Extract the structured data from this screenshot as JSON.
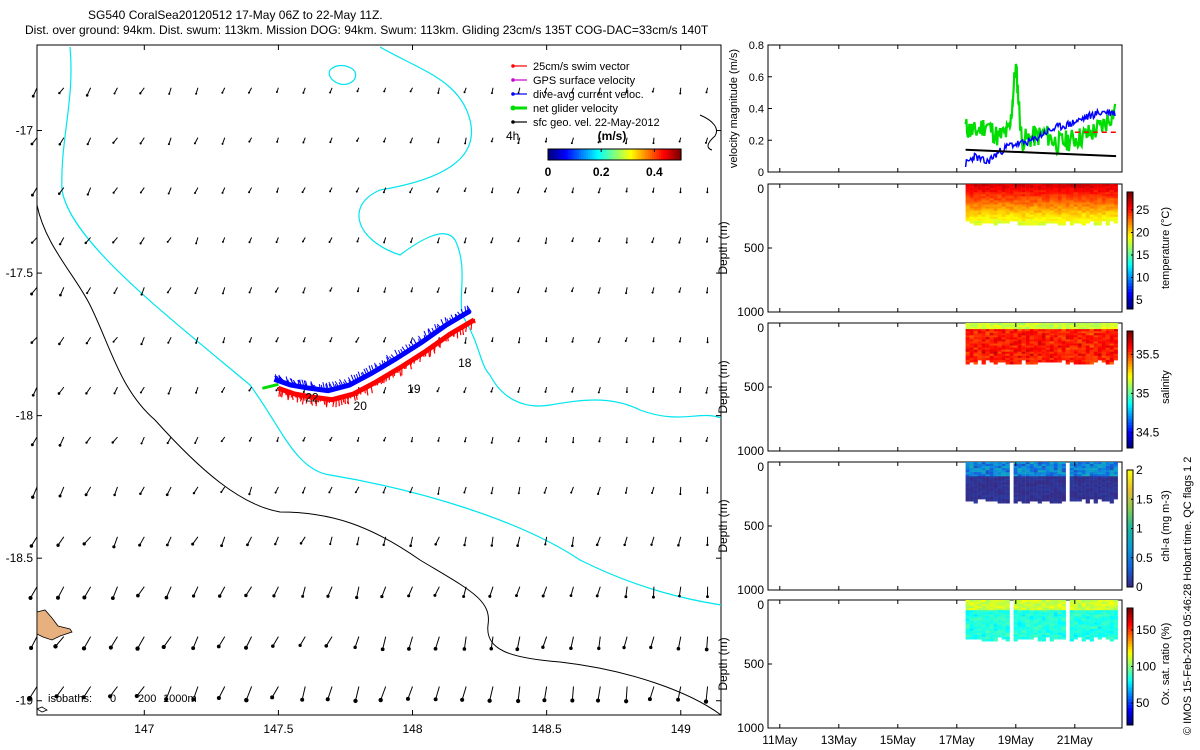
{
  "title_line1": "SG540 CoralSea20120512 17-May 06Z to 22-May 11Z.",
  "title_line2": "Dist. over ground: 94km. Dist. swum: 113km. Mission DOG: 94km. Swum: 113km. Gliding 23cm/s 135T COG-DAC=33cm/s 140T",
  "side_note": "© IMOS 15-Feb-2019 05:46:28 Hobart time. QC flags 1 2",
  "colors": {
    "swim": "#ff0000",
    "gps": "#cc00cc",
    "dac": "#0000ff",
    "net": "#00dd00",
    "geo": "#000000",
    "isobath200": "#00e5ee",
    "isobath1000": "#000000",
    "land": "#e8b07e"
  },
  "chart_data": [
    {
      "type": "scatter",
      "name": "map",
      "xlim": [
        146.6,
        149.15
      ],
      "ylim": [
        -19.05,
        -16.7
      ],
      "xticks": [
        147,
        147.5,
        148,
        148.5,
        149
      ],
      "yticks": [
        -17,
        -17.5,
        -18,
        -18.5,
        -19
      ],
      "xtick_labels": [
        "147",
        "147.5",
        "148",
        "148.5",
        "149"
      ],
      "ytick_labels": [
        "-17",
        "-17.5",
        "-18",
        "-18.5",
        "-19"
      ],
      "legend": [
        "25cm/s swim vector",
        "GPS surface velocity",
        "dive-avg current veloc.",
        "net glider velocity",
        "sfc geo. vel. 22-May-2012"
      ],
      "legend_position": "top-right",
      "colorbar": {
        "title": "(m/s)",
        "ticks": [
          "0",
          "0.2",
          "0.4"
        ],
        "range": [
          0,
          0.5
        ]
      },
      "track_day_labels": [
        {
          "text": "18",
          "lon": 148.17,
          "lat": -17.83
        },
        {
          "text": "19",
          "lon": 147.98,
          "lat": -17.92
        },
        {
          "text": "20",
          "lon": 147.78,
          "lat": -17.98
        },
        {
          "text": "22",
          "lon": 147.6,
          "lat": -17.95
        }
      ],
      "track": [
        [
          148.23,
          -17.65
        ],
        [
          148.14,
          -17.7
        ],
        [
          148.05,
          -17.76
        ],
        [
          147.95,
          -17.82
        ],
        [
          147.86,
          -17.87
        ],
        [
          147.78,
          -17.91
        ],
        [
          147.7,
          -17.93
        ],
        [
          147.62,
          -17.92
        ],
        [
          147.56,
          -17.91
        ],
        [
          147.5,
          -17.89
        ]
      ],
      "isobath_labels": {
        "prefix": "isobaths:",
        "values": [
          "0",
          "200",
          "1000m"
        ]
      },
      "marker_label": "4h",
      "grid": false
    },
    {
      "type": "line",
      "name": "velocity",
      "ylabel": "velocity magnitude (m/s)",
      "ylim": [
        0,
        0.8
      ],
      "yticks": [
        "0",
        "0.2",
        "0.4",
        "0.6",
        "0.8"
      ],
      "series": [
        {
          "color": "#00dd00",
          "x": [
            17.3,
            17.6,
            18.0,
            18.4,
            18.8,
            19.0,
            19.2,
            19.6,
            20.0,
            20.4,
            20.8,
            21.2,
            21.6,
            22.0,
            22.4
          ],
          "values": [
            0.28,
            0.25,
            0.3,
            0.22,
            0.26,
            0.68,
            0.2,
            0.22,
            0.24,
            0.18,
            0.2,
            0.22,
            0.25,
            0.3,
            0.4
          ]
        },
        {
          "color": "#0000ff",
          "x": [
            17.3,
            17.6,
            18.0,
            18.4,
            18.8,
            19.2,
            19.6,
            20.0,
            20.4,
            20.8,
            21.2,
            21.6,
            22.0,
            22.4
          ],
          "values": [
            0.05,
            0.1,
            0.06,
            0.12,
            0.17,
            0.18,
            0.2,
            0.25,
            0.28,
            0.3,
            0.33,
            0.36,
            0.38,
            0.37
          ]
        },
        {
          "color": "#000000",
          "x": [
            17.3,
            22.4
          ],
          "values": [
            0.14,
            0.1
          ]
        },
        {
          "color": "#ff0000",
          "x": [
            21.0,
            22.4
          ],
          "values": [
            0.25,
            0.25
          ]
        }
      ]
    },
    {
      "type": "heatmap",
      "name": "temperature",
      "ylabel": "Depth (m)",
      "cbar_label": "temperature (°C)",
      "cbar_ticks": [
        "5",
        "10",
        "15",
        "20",
        "25"
      ],
      "ylim": [
        0,
        1000
      ],
      "yticks": [
        "0",
        "500",
        "1000"
      ],
      "clim": [
        3,
        29
      ]
    },
    {
      "type": "heatmap",
      "name": "salinity",
      "ylabel": "Depth (m)",
      "cbar_label": "salinity",
      "cbar_ticks": [
        "34.5",
        "35",
        "35.5"
      ],
      "ylim": [
        0,
        1000
      ],
      "yticks": [
        "0",
        "500",
        "1000"
      ],
      "clim": [
        34.3,
        35.8
      ]
    },
    {
      "type": "heatmap",
      "name": "chla",
      "ylabel": "Depth (m)",
      "cbar_label": "chl-a (mg m-3)",
      "cbar_ticks": [
        "0",
        "0.5",
        "1",
        "1.5",
        "2"
      ],
      "ylim": [
        0,
        1000
      ],
      "yticks": [
        "0",
        "500",
        "1000"
      ],
      "clim": [
        0,
        2
      ]
    },
    {
      "type": "heatmap",
      "name": "oxsat",
      "ylabel": "Depth (m)",
      "cbar_label": "Ox. sat. ratio (%)",
      "cbar_ticks": [
        "50",
        "100",
        "150"
      ],
      "ylim": [
        0,
        1000
      ],
      "yticks": [
        "0",
        "500",
        "1000"
      ],
      "clim": [
        20,
        180
      ]
    },
    {
      "type": "axis",
      "name": "time_axis",
      "xlim": [
        10.6,
        22.6
      ],
      "xticks": [
        11,
        13,
        15,
        17,
        19,
        21
      ],
      "xtick_labels": [
        "11May",
        "13May",
        "15May",
        "17May",
        "19May",
        "21May"
      ]
    }
  ]
}
